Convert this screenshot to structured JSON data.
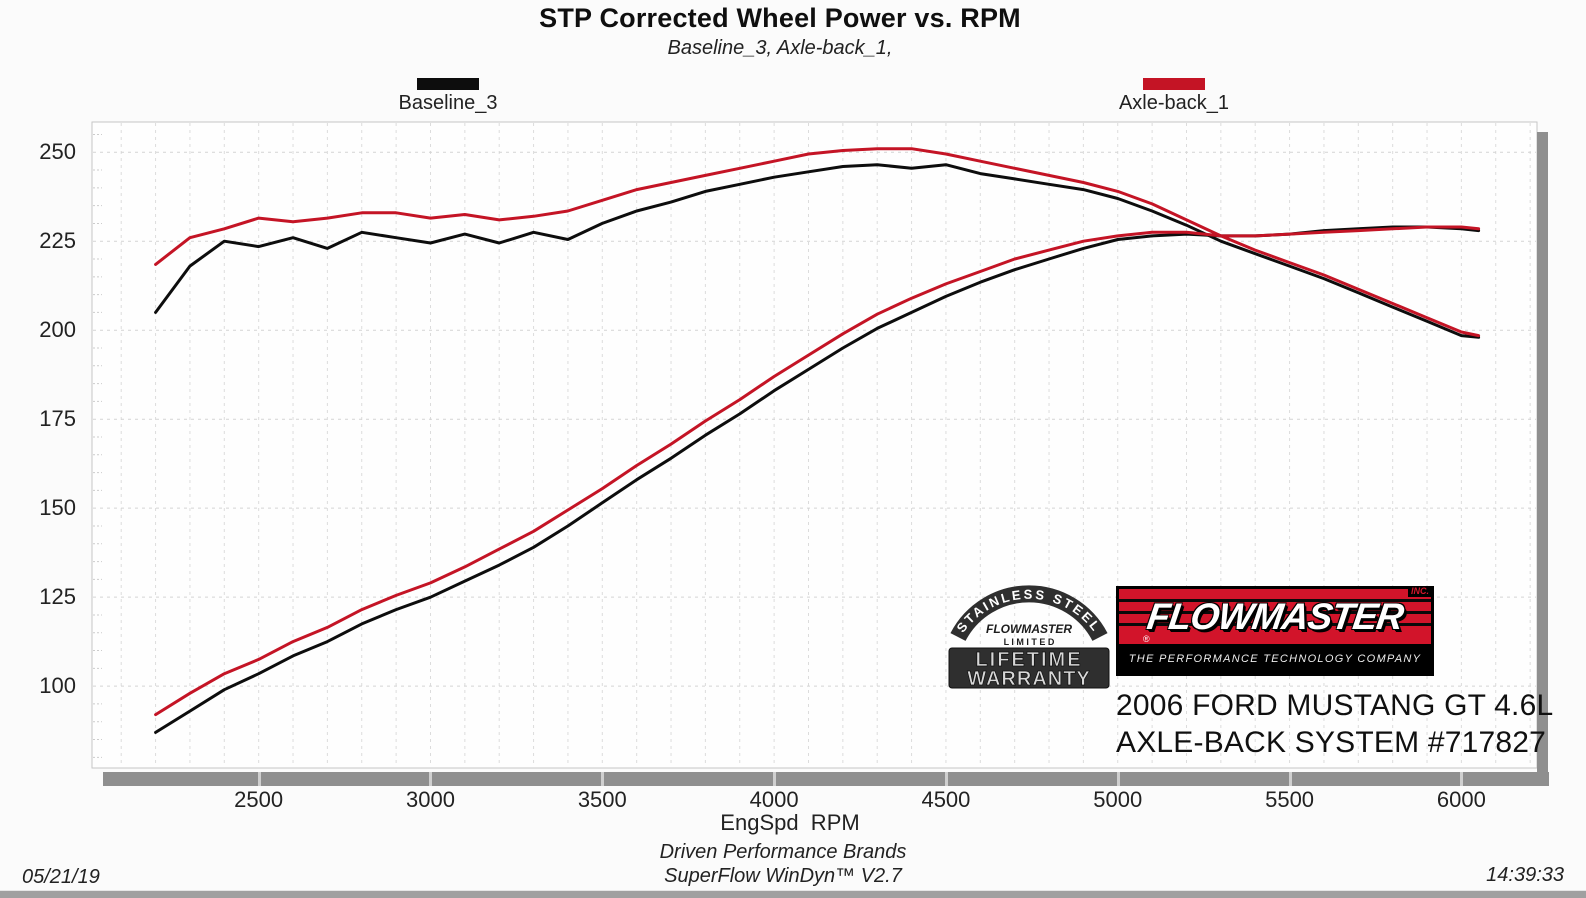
{
  "title": "STP Corrected Wheel Power vs. RPM",
  "subtitle": "Baseline_3, Axle-back_1,",
  "legend": {
    "baseline": {
      "label": "Baseline_3",
      "color": "#0d0d0d"
    },
    "axleback": {
      "label": "Axle-back_1",
      "color": "#c41425"
    }
  },
  "colors": {
    "curve_black": "#0d0d0d",
    "curve_red": "#c41425",
    "brand_red": "#d2142a",
    "axis_gray": "#8f8f8f",
    "grid_gray": "#dcdcdc"
  },
  "x_axis_title": "EngSpd  RPM",
  "footer": {
    "date": "05/21/19",
    "brand_line": "Driven Performance Brands",
    "software_line": "SuperFlow WinDyn™ V2.7",
    "time": "14:39:33"
  },
  "badge": {
    "arc_text": "STAINLESS STEEL",
    "brand": "FLOWMASTER",
    "limited": "L I M I T E D",
    "line1": "LIFETIME",
    "line2": "WARRANTY"
  },
  "logo": {
    "wordmark": "FLOWMASTER",
    "inc": "INC.",
    "registered": "®",
    "tagline": "THE PERFORMANCE TECHNOLOGY COMPANY"
  },
  "vehicle": {
    "line1": "2006 FORD MUSTANG GT 4.6L",
    "line2": "AXLE-BACK SYSTEM #717827"
  },
  "chart_data": {
    "type": "line",
    "title": "STP Corrected Wheel Power vs. RPM",
    "xlabel": "EngSpd RPM",
    "ylabel": "",
    "xlim": [
      2015,
      6220
    ],
    "ylim": [
      77,
      258.5
    ],
    "x_ticks": [
      2500,
      3000,
      3500,
      4000,
      4500,
      5000,
      5500,
      6000
    ],
    "y_ticks": [
      100,
      125,
      150,
      175,
      200,
      225,
      250
    ],
    "x_grid_step": 100,
    "y_minor_step": 5,
    "grid": "dashed",
    "legend_position": "top",
    "x": [
      2200,
      2300,
      2400,
      2500,
      2600,
      2700,
      2800,
      2900,
      3000,
      3100,
      3200,
      3300,
      3400,
      3500,
      3600,
      3700,
      3800,
      3900,
      4000,
      4100,
      4200,
      4300,
      4400,
      4500,
      4600,
      4700,
      4800,
      4900,
      5000,
      5100,
      5200,
      5300,
      5400,
      5500,
      5600,
      5700,
      5800,
      5900,
      6000,
      6050
    ],
    "series": [
      {
        "name": "Baseline_3 torque",
        "color": "#0d0d0d",
        "values": [
          205,
          218,
          225,
          223.5,
          226,
          223,
          227.5,
          226,
          224.5,
          227,
          224.5,
          227.5,
          225.5,
          230,
          233.5,
          236,
          239,
          241,
          243,
          244.5,
          246,
          246.5,
          245.5,
          246.5,
          244,
          242.5,
          241,
          239.5,
          237,
          233.5,
          229.5,
          225,
          221.5,
          218,
          214.5,
          210.5,
          206.5,
          202.5,
          198.5,
          198
        ]
      },
      {
        "name": "Baseline_3 power",
        "color": "#0d0d0d",
        "values": [
          87,
          93,
          99,
          103.5,
          108.5,
          112.5,
          117.5,
          121.5,
          125,
          129.5,
          134,
          139,
          145,
          151.5,
          158,
          164,
          170.5,
          176.5,
          183,
          189,
          195,
          200.5,
          205,
          209.5,
          213.5,
          217,
          220,
          223,
          225.5,
          226.5,
          227,
          226.5,
          226.5,
          227,
          228,
          228.5,
          229,
          229,
          228.5,
          228
        ]
      },
      {
        "name": "Axle-back_1 torque",
        "color": "#c41425",
        "values": [
          218.5,
          226,
          228.5,
          231.5,
          230.5,
          231.5,
          233,
          233,
          231.5,
          232.5,
          231,
          232,
          233.5,
          236.5,
          239.5,
          241.5,
          243.5,
          245.5,
          247.5,
          249.5,
          250.5,
          251,
          251,
          249.5,
          247.5,
          245.5,
          243.5,
          241.5,
          239,
          235.5,
          231,
          226.5,
          222.5,
          219,
          215.5,
          211.5,
          207.5,
          203.5,
          199.5,
          198.5
        ]
      },
      {
        "name": "Axle-back_1 power",
        "color": "#c41425",
        "values": [
          92,
          98,
          103.5,
          107.5,
          112.5,
          116.5,
          121.5,
          125.5,
          129,
          133.5,
          138.5,
          143.5,
          149.5,
          155.5,
          162,
          168,
          174.5,
          180.5,
          187,
          193,
          199,
          204.5,
          209,
          213,
          216.5,
          220,
          222.5,
          225,
          226.5,
          227.5,
          227.5,
          226.5,
          226.5,
          227,
          227.5,
          228,
          228.5,
          229,
          229,
          228.5
        ]
      }
    ]
  }
}
